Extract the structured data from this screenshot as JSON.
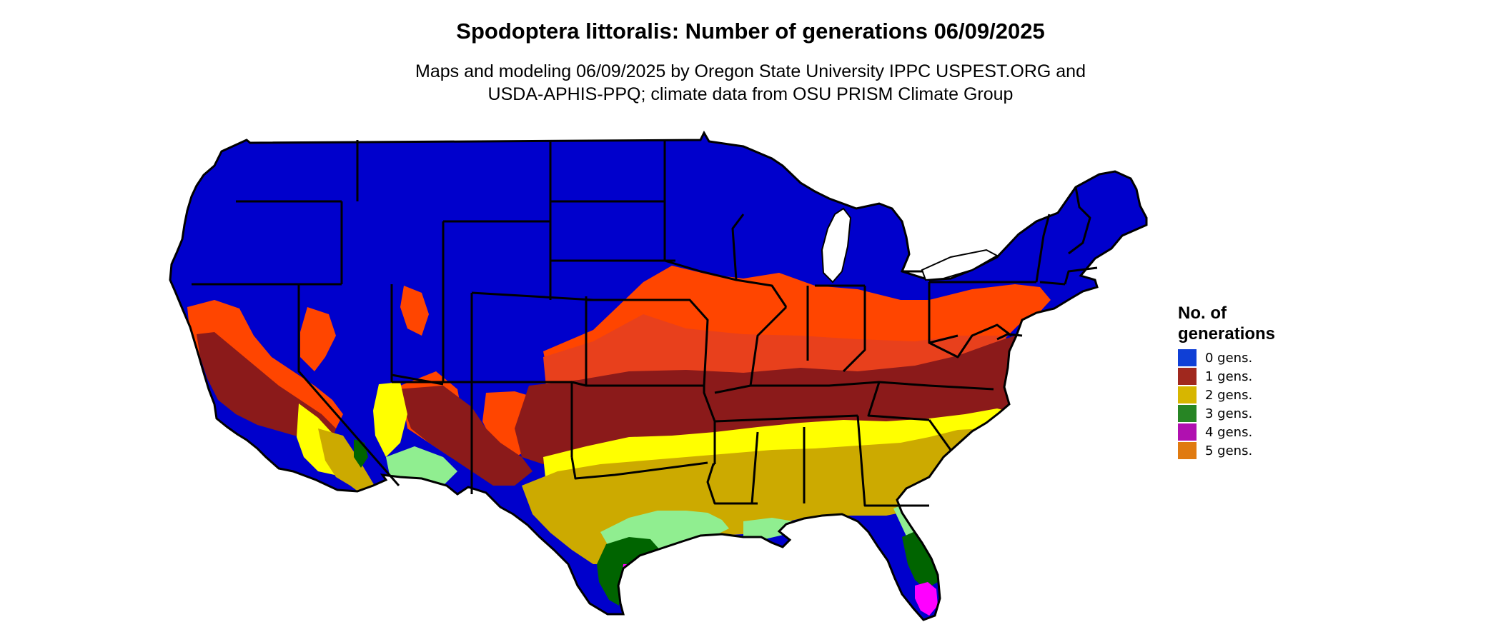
{
  "title": "Spodoptera littoralis: Number of generations 06/09/2025",
  "subtitle_lines": [
    "Maps and modeling 06/09/2025 by Oregon State University IPPC USPEST.ORG and",
    "USDA-APHIS-PPQ; climate data from OSU PRISM Climate Group"
  ],
  "map": {
    "region": "contiguous United States",
    "zone_colors": {
      "none": "#0000cc",
      "partial_low": "#ff4500",
      "partial_mid": "#e8401c",
      "one": "#8b1a1a",
      "two_light": "#ffff00",
      "two": "#ccaa00",
      "three_light": "#90ee90",
      "three": "#006400",
      "four": "#ff00ff"
    },
    "border_color": "#000000"
  },
  "legend": {
    "title_lines": [
      "No. of",
      "generations"
    ],
    "items": [
      {
        "label": "0 gens.",
        "color": "#0f3fd6"
      },
      {
        "label": "1 gens.",
        "color": "#a0281e"
      },
      {
        "label": "2 gens.",
        "color": "#d7b600"
      },
      {
        "label": "3 gens.",
        "color": "#278524"
      },
      {
        "label": "4 gens.",
        "color": "#b010b0"
      },
      {
        "label": "5 gens.",
        "color": "#e07a10"
      }
    ]
  }
}
